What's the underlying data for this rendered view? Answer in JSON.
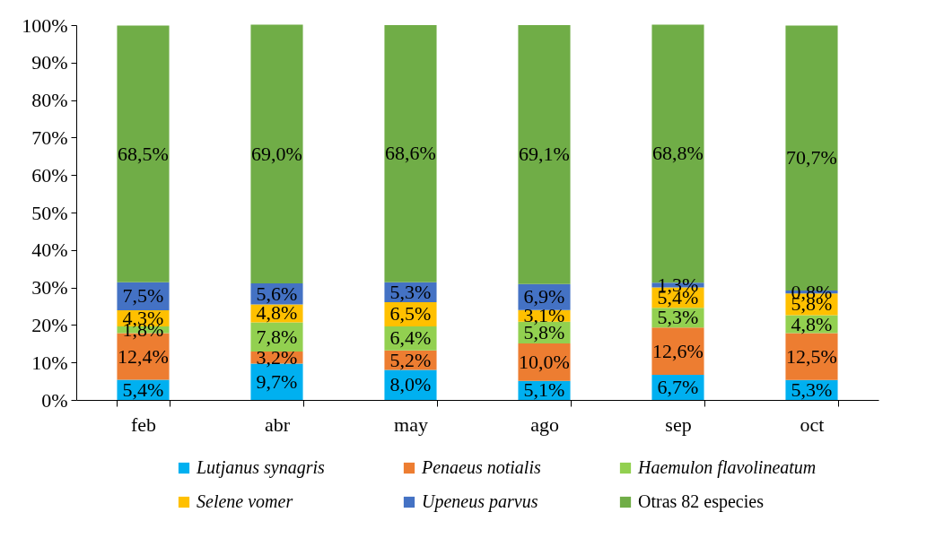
{
  "chart_data": {
    "type": "bar",
    "stacked": true,
    "categories": [
      "feb",
      "abr",
      "may",
      "ago",
      "sep",
      "oct"
    ],
    "ylim": [
      0,
      100
    ],
    "yticks": [
      {
        "value": 0,
        "label": "0%"
      },
      {
        "value": 10,
        "label": "10%"
      },
      {
        "value": 20,
        "label": "20%"
      },
      {
        "value": 30,
        "label": "30%"
      },
      {
        "value": 40,
        "label": "40%"
      },
      {
        "value": 50,
        "label": "50%"
      },
      {
        "value": 60,
        "label": "60%"
      },
      {
        "value": 70,
        "label": "70%"
      },
      {
        "value": 80,
        "label": "80%"
      },
      {
        "value": 90,
        "label": "90%"
      },
      {
        "value": 100,
        "label": "100%"
      }
    ],
    "grid": false,
    "legend": "bottom",
    "series": [
      {
        "name": "Lutjanus synagris",
        "color": "#00b0f0",
        "values": [
          5.4,
          9.7,
          8.0,
          5.1,
          6.7,
          5.3
        ],
        "value_labels": [
          "5,4%",
          "9,7%",
          "8,0%",
          "5,1%",
          "6,7%",
          "5,3%"
        ]
      },
      {
        "name": "Penaeus notialis",
        "color": "#ed7d31",
        "values": [
          12.4,
          3.2,
          5.2,
          10.0,
          12.6,
          12.5
        ],
        "value_labels": [
          "12,4%",
          "3,2%",
          "5,2%",
          "10,0%",
          "12,6%",
          "12,5%"
        ]
      },
      {
        "name": "Haemulon flavolineatum",
        "color": "#92d050",
        "values": [
          1.8,
          7.8,
          6.4,
          5.8,
          5.3,
          4.8
        ],
        "value_labels": [
          "1,8%",
          "7,8%",
          "6,4%",
          "5,8%",
          "5,3%",
          "4,8%"
        ]
      },
      {
        "name": "Selene vomer",
        "color": "#ffc000",
        "values": [
          4.3,
          4.8,
          6.5,
          3.1,
          5.4,
          5.8
        ],
        "value_labels": [
          "4,3%",
          "4,8%",
          "6,5%",
          "3,1%",
          "5,4%",
          "5,8%"
        ]
      },
      {
        "name": "Upeneus parvus",
        "color": "#4472c4",
        "values": [
          7.5,
          5.6,
          5.3,
          6.9,
          1.3,
          0.8
        ],
        "value_labels": [
          "7,5%",
          "5,6%",
          "5,3%",
          "6,9%",
          "1,3%",
          "0,8%"
        ]
      },
      {
        "name": "Otras 82 especies",
        "color": "#70ad47",
        "values": [
          68.5,
          69.0,
          68.6,
          69.1,
          68.8,
          70.7
        ],
        "value_labels": [
          "68,5%",
          "69,0%",
          "68,6%",
          "69,1%",
          "68,8%",
          "70,7%"
        ]
      }
    ]
  }
}
